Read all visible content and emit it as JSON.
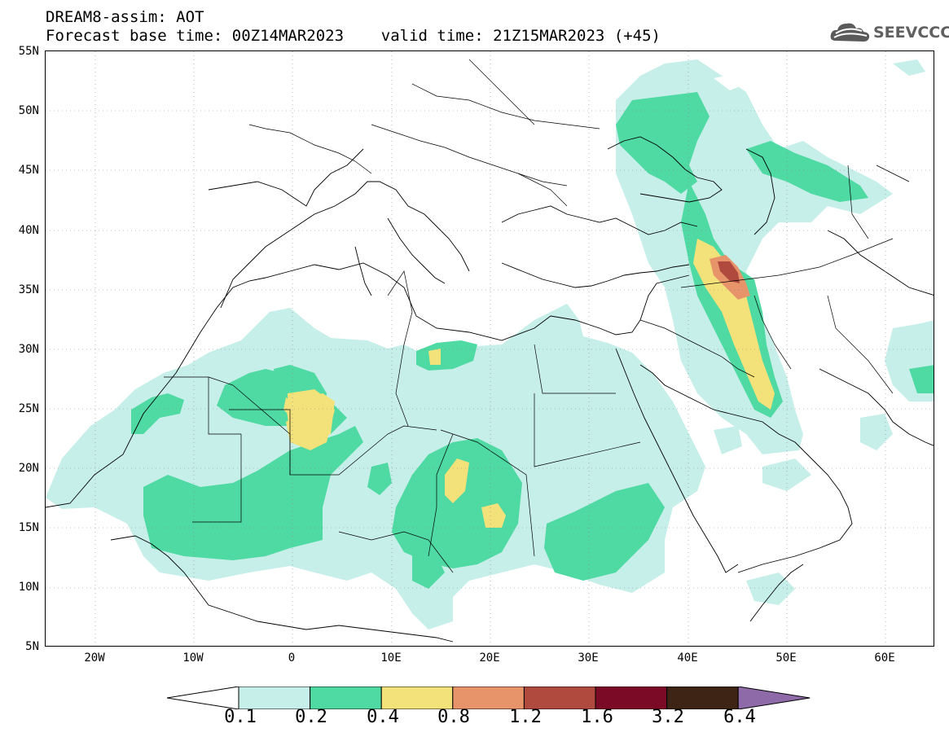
{
  "header": {
    "line1": "DREAM8-assim: AOT",
    "line2": "Forecast base time: 00Z14MAR2023    valid time: 21Z15MAR2023 (+45)"
  },
  "logo": {
    "text": "SEEVCCC",
    "icon": "cloud-icon"
  },
  "map": {
    "region": "North Africa, Middle East and Europe",
    "lon_range": [
      -25,
      65
    ],
    "lat_range": [
      5,
      55
    ],
    "grid": true,
    "lat_labels": [
      "55N",
      "50N",
      "45N",
      "40N",
      "35N",
      "30N",
      "25N",
      "20N",
      "15N",
      "10N",
      "5N"
    ],
    "lon_labels": [
      "20W",
      "10W",
      "0",
      "10E",
      "20E",
      "30E",
      "40E",
      "50E",
      "60E"
    ]
  },
  "legend": {
    "labels": [
      "0.1",
      "0.2",
      "0.4",
      "0.8",
      "1.2",
      "1.6",
      "3.2",
      "6.4"
    ],
    "colors": [
      "#ffffff",
      "#c6efe9",
      "#4fd9a3",
      "#f3e27a",
      "#e8946a",
      "#b04a3e",
      "#7b0a26",
      "#3d2414",
      "#8f6aa8"
    ]
  }
}
